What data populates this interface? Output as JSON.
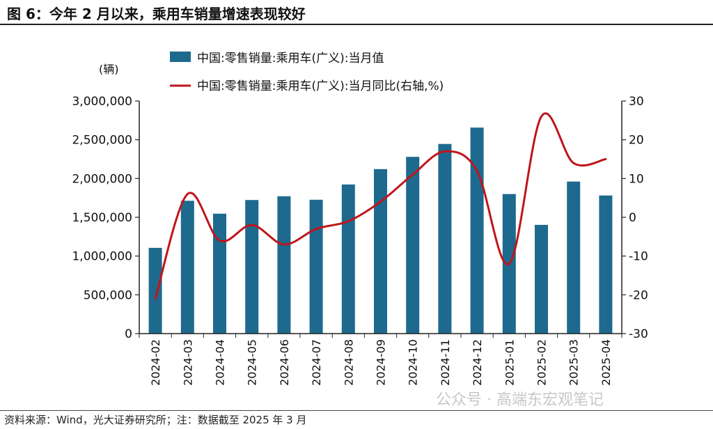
{
  "figure": {
    "title": "图 6：今年 2 月以来，乘用车销量增速表现较好",
    "source": "资料来源：Wind，光大证券研究所；注：数据截至 2025 年 3 月",
    "watermark": "公众号 · 高端东宏观笔记"
  },
  "colors": {
    "bar": "#1d6a8e",
    "line": "#c0151b",
    "axis": "#222222"
  },
  "chart_data": {
    "type": "bar",
    "categories": [
      "2024-02",
      "2024-03",
      "2024-04",
      "2024-05",
      "2024-06",
      "2024-07",
      "2024-08",
      "2024-09",
      "2024-10",
      "2024-11",
      "2024-12",
      "2025-01",
      "2025-02",
      "2025-03",
      "2025-04"
    ],
    "series": [
      {
        "name": "中国:零售销量:乘用车(广义):当月值",
        "type": "bar",
        "axis": "left",
        "values": [
          1106000,
          1713000,
          1547000,
          1723000,
          1771000,
          1726000,
          1923000,
          2122000,
          2280000,
          2446000,
          2657000,
          1800000,
          1402000,
          1961000,
          1781000
        ]
      },
      {
        "name": "中国:零售销量:乘用车(广义):当月同比(右轴,%)",
        "type": "line",
        "axis": "right",
        "values": [
          -21,
          6,
          -6,
          -2,
          -7,
          -3,
          -1,
          4,
          11,
          17,
          12,
          -12,
          26,
          14,
          15
        ]
      }
    ],
    "left_axis": {
      "unit_label": "(辆)",
      "ylim": [
        0,
        3000000
      ],
      "ticks": [
        0,
        500000,
        1000000,
        1500000,
        2000000,
        2500000,
        3000000
      ],
      "tick_labels": [
        "0",
        "500,000",
        "1,000,000",
        "1,500,000",
        "2,000,000",
        "2,500,000",
        "3,000,000"
      ]
    },
    "right_axis": {
      "ylim": [
        -30,
        30
      ],
      "ticks": [
        -30,
        -20,
        -10,
        0,
        10,
        20,
        30
      ],
      "tick_labels": [
        "-30",
        "-20",
        "-10",
        "0",
        "10",
        "20",
        "30"
      ]
    },
    "legend_position": "top-center",
    "grid": false
  }
}
